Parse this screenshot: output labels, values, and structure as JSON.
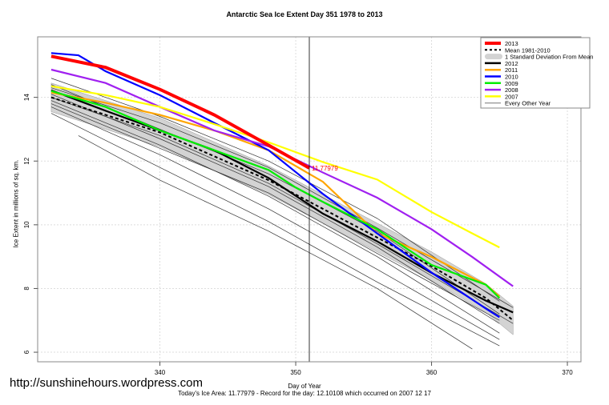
{
  "chart_data": {
    "type": "line",
    "title": "Antarctic Sea Ice Extent Day 351 1978 to 2013",
    "xlabel": "Day of Year",
    "ylabel": "Ice Extent in millions of sq. km.",
    "xlim": [
      331,
      371
    ],
    "ylim": [
      5.7,
      15.9
    ],
    "xticks": [
      340,
      350,
      360,
      370
    ],
    "yticks": [
      6,
      8,
      10,
      12,
      14
    ],
    "grid": true,
    "legend_position": "top-right",
    "current_day": 351,
    "annotation": "11.77979",
    "legend": [
      "2013",
      "Mean 1981-2010",
      "1 Standard Deviation From Mean",
      "2012",
      "2011",
      "2010",
      "2009",
      "2008",
      "2007",
      "Every Other Year"
    ],
    "mean": {
      "name": "Mean 1981-2010",
      "x": [
        332,
        336,
        340,
        344,
        348,
        352,
        356,
        360,
        364,
        366
      ],
      "y": [
        14.0,
        13.45,
        12.9,
        12.15,
        11.4,
        10.5,
        9.6,
        8.7,
        7.7,
        7.0
      ],
      "sd": 0.45
    },
    "series": [
      {
        "name": "2012",
        "color": "#000000",
        "x": [
          332,
          336,
          340,
          344,
          348,
          352,
          356,
          360,
          364,
          366
        ],
        "y": [
          14.22,
          13.58,
          12.96,
          12.34,
          11.47,
          10.35,
          9.48,
          8.49,
          7.62,
          7.25
        ]
      },
      {
        "name": "2011",
        "color": "#FFA500",
        "x": [
          332,
          336,
          340,
          344,
          348,
          352,
          356,
          360,
          364,
          365
        ],
        "y": [
          14.15,
          13.83,
          13.45,
          12.96,
          12.34,
          11.35,
          9.73,
          8.99,
          8.12,
          7.75
        ]
      },
      {
        "name": "2010",
        "color": "#0000FF",
        "x": [
          332,
          334,
          336,
          340,
          344,
          348,
          352,
          356,
          360,
          364,
          365
        ],
        "y": [
          15.39,
          15.32,
          14.82,
          14.07,
          13.2,
          12.34,
          10.97,
          9.73,
          8.5,
          7.37,
          7.1
        ]
      },
      {
        "name": "2009",
        "color": "#00EE00",
        "x": [
          332,
          336,
          340,
          344,
          348,
          350,
          352,
          356,
          360,
          364,
          365
        ],
        "y": [
          14.2,
          13.7,
          12.96,
          12.34,
          11.72,
          11.17,
          10.72,
          9.86,
          8.74,
          8.12,
          7.7
        ]
      },
      {
        "name": "2008",
        "color": "#A020F0",
        "x": [
          332,
          336,
          340,
          344,
          348,
          352,
          356,
          360,
          363,
          366
        ],
        "y": [
          14.87,
          14.45,
          13.7,
          12.96,
          12.46,
          11.64,
          10.85,
          9.86,
          8.99,
          8.07
        ]
      },
      {
        "name": "2007",
        "color": "#FFFF00",
        "x": [
          332,
          336,
          340,
          344,
          348,
          352,
          356,
          360,
          363,
          365
        ],
        "y": [
          14.35,
          14.07,
          13.7,
          13.16,
          12.59,
          11.97,
          11.42,
          10.4,
          9.73,
          9.29
        ]
      },
      {
        "name": "2013",
        "color": "#FF0000",
        "x": [
          332,
          336,
          340,
          344,
          348,
          351
        ],
        "y": [
          15.29,
          14.94,
          14.25,
          13.45,
          12.5,
          11.78
        ]
      }
    ],
    "other_years": [
      {
        "x": [
          332,
          340,
          348,
          356,
          365
        ],
        "y": [
          14.6,
          13.4,
          12.0,
          10.2,
          7.6
        ]
      },
      {
        "x": [
          332,
          340,
          348,
          356,
          365
        ],
        "y": [
          14.4,
          13.0,
          11.6,
          9.8,
          7.2
        ]
      },
      {
        "x": [
          332,
          340,
          348,
          356,
          365
        ],
        "y": [
          14.1,
          12.7,
          11.2,
          9.3,
          6.9
        ]
      },
      {
        "x": [
          332,
          340,
          348,
          356,
          365
        ],
        "y": [
          13.9,
          12.5,
          10.9,
          9.0,
          6.6
        ]
      },
      {
        "x": [
          332,
          340,
          348,
          356,
          365
        ],
        "y": [
          13.7,
          12.2,
          10.5,
          8.6,
          6.4
        ]
      },
      {
        "x": [
          332,
          340,
          348,
          356,
          365
        ],
        "y": [
          13.5,
          11.8,
          10.1,
          8.2,
          6.2
        ]
      },
      {
        "x": [
          334,
          340,
          348,
          356,
          363
        ],
        "y": [
          12.8,
          11.4,
          9.8,
          8.0,
          6.1
        ]
      },
      {
        "x": [
          332,
          340,
          348,
          356,
          366
        ],
        "y": [
          14.3,
          13.2,
          11.8,
          9.9,
          7.4
        ]
      },
      {
        "x": [
          332,
          340,
          348,
          356,
          366
        ],
        "y": [
          14.0,
          12.8,
          11.3,
          9.4,
          6.9
        ]
      },
      {
        "x": [
          332,
          340,
          348,
          356,
          365
        ],
        "y": [
          13.8,
          12.4,
          11.0,
          9.1,
          7.0
        ]
      }
    ]
  },
  "watermark": "http://sunshinehours.wordpress.com",
  "footer": "Today's Ice Area: 11.77979  - Record for the day: 12.10108 which occurred on 2007 12 17"
}
